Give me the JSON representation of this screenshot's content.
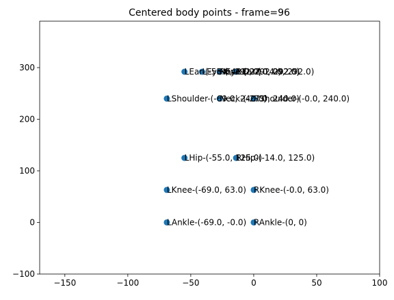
{
  "chart_data": {
    "type": "scatter",
    "title": "Centered body points - frame=96",
    "xlabel": "",
    "ylabel": "",
    "xlim": [
      -170,
      100
    ],
    "ylim": [
      -100,
      390
    ],
    "xticks": [
      -150,
      -100,
      -50,
      0,
      50,
      100
    ],
    "yticks": [
      -100,
      0,
      100,
      200,
      300
    ],
    "xtick_labels": [
      "−150",
      "−100",
      "−50",
      "0",
      "50",
      "100"
    ],
    "ytick_labels": [
      "−100",
      "0",
      "100",
      "200",
      "300"
    ],
    "grid": false,
    "marker_color": "#1f77b4",
    "points": [
      {
        "x": -27,
        "y": 292,
        "label": "Nose-(-27.0, 292.0)"
      },
      {
        "x": -27,
        "y": 240,
        "label": "Neck-(-27.0, 240.0)"
      },
      {
        "x": 0,
        "y": 240,
        "label": "RShoulder-(-0.0, 240.0)"
      },
      {
        "x": -69,
        "y": 240,
        "label": "LShoulder-(-69.0, 240.0)"
      },
      {
        "x": -14,
        "y": 125,
        "label": "RHip-(-14.0, 125.0)"
      },
      {
        "x": 0,
        "y": 63,
        "label": "RKnee-(-0.0, 63.0)"
      },
      {
        "x": 0,
        "y": 0,
        "label": "RAnkle-(0, 0)"
      },
      {
        "x": -55,
        "y": 125,
        "label": "LHip-(-55.0, 125.0)"
      },
      {
        "x": -69,
        "y": 63,
        "label": "LKnee-(-69.0, 63.0)"
      },
      {
        "x": -69,
        "y": 0,
        "label": "LAnkle-(-69.0, -0.0)"
      },
      {
        "x": -27,
        "y": 292,
        "label": "REye-(-27.0, 292.0)"
      },
      {
        "x": -41,
        "y": 292,
        "label": "LEye-(-41.0, 292.0)"
      },
      {
        "x": -14,
        "y": 292,
        "label": "REar-(-14.0, 292.0)"
      },
      {
        "x": -55,
        "y": 292,
        "label": "LEar-(-55.0, 292.0)"
      }
    ]
  }
}
